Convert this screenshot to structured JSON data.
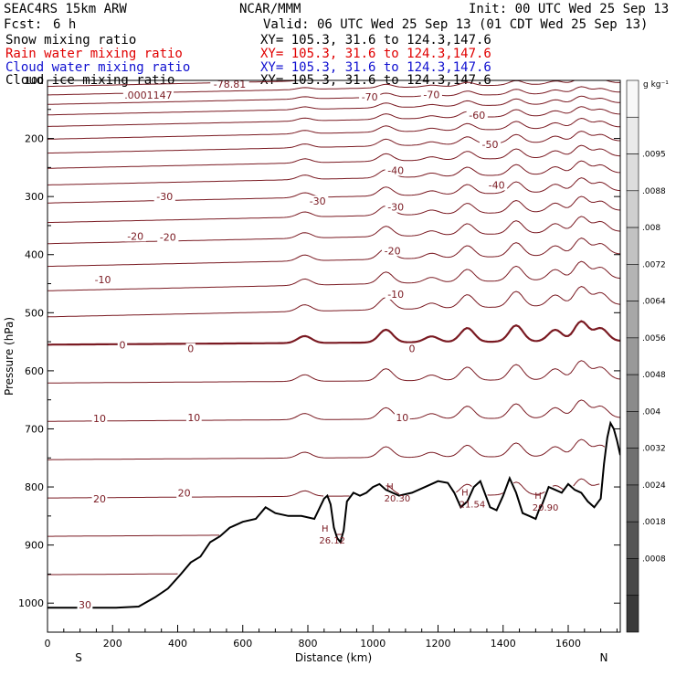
{
  "header": {
    "model": "SEAC4RS 15km ARW",
    "fcst_label": "Fcst:",
    "fcst_value": "6 h",
    "center": "NCAR/MMM",
    "init": "Init: 00 UTC Wed 25 Sep 13",
    "valid": "Valid: 06 UTC Wed 25 Sep 13 (01 CDT Wed 25 Sep 13)"
  },
  "fields": [
    {
      "name": "Snow mixing ratio",
      "xy": "XY= 105.3, 31.6 to 124.3,147.6",
      "color": "#000000"
    },
    {
      "name": "Rain water mixing ratio",
      "xy": "XY= 105.3, 31.6 to 124.3,147.6",
      "color": "#e00000"
    },
    {
      "name": "Cloud water mixing ratio",
      "xy": "XY= 105.3, 31.6 to 124.3,147.6",
      "color": "#1010d0"
    },
    {
      "name": "Cloud ice mixing ratio",
      "xy": "XY= 105.3, 31.6 to 124.3,147.6",
      "color": "#000000"
    }
  ],
  "chart_data": {
    "type": "line",
    "xlabel": "Distance (km)",
    "ylabel": "Pressure (hPa)",
    "xlim": [
      0,
      1760
    ],
    "ylim": [
      1050,
      100
    ],
    "x_ticks": [
      0,
      200,
      400,
      600,
      800,
      1000,
      1200,
      1400,
      1600
    ],
    "y_ticks": [
      200,
      300,
      400,
      500,
      600,
      700,
      800,
      900,
      1000
    ],
    "y_tick_labels": [
      "200",
      "300",
      "400",
      "500",
      "600",
      "700",
      "800",
      "900",
      "1000"
    ],
    "y_top_label": "100",
    "x_end_labels": {
      "left": "S",
      "right": "N"
    },
    "isotherm_color": "#7a1a22",
    "terrain_color": "#000000",
    "isotherm_levels": [
      -80,
      -75,
      -70,
      -65,
      -60,
      -55,
      -50,
      -45,
      -40,
      -35,
      -30,
      -25,
      -20,
      -15,
      -10,
      -5,
      0,
      5,
      10,
      15,
      20,
      25,
      30
    ],
    "zero_isotherm_base": 555,
    "isotherm_labels": [
      {
        "text": "-78.81",
        "x": 560,
        "p": 106
      },
      {
        "text": ".0001147",
        "x": 310,
        "p": 125
      },
      {
        "text": "-70",
        "x": 990,
        "p": 128
      },
      {
        "text": "-70",
        "x": 1180,
        "p": 124
      },
      {
        "text": "-60",
        "x": 1320,
        "p": 160
      },
      {
        "text": "-50",
        "x": 1360,
        "p": 210
      },
      {
        "text": "-40",
        "x": 1070,
        "p": 255
      },
      {
        "text": "-40",
        "x": 1380,
        "p": 280
      },
      {
        "text": "-30",
        "x": 360,
        "p": 300
      },
      {
        "text": "-30",
        "x": 830,
        "p": 308
      },
      {
        "text": "-30",
        "x": 1070,
        "p": 318
      },
      {
        "text": "-20",
        "x": 270,
        "p": 368
      },
      {
        "text": "-20",
        "x": 370,
        "p": 370
      },
      {
        "text": "-20",
        "x": 1060,
        "p": 393
      },
      {
        "text": "-10",
        "x": 170,
        "p": 443
      },
      {
        "text": "-10",
        "x": 1070,
        "p": 468
      },
      {
        "text": "0",
        "x": 230,
        "p": 555
      },
      {
        "text": "0",
        "x": 440,
        "p": 562
      },
      {
        "text": "0",
        "x": 1120,
        "p": 562
      },
      {
        "text": "10",
        "x": 160,
        "p": 682
      },
      {
        "text": "10",
        "x": 450,
        "p": 680
      },
      {
        "text": "10",
        "x": 1090,
        "p": 680
      },
      {
        "text": "20",
        "x": 160,
        "p": 820
      },
      {
        "text": "20",
        "x": 420,
        "p": 810
      },
      {
        "text": "30",
        "x": 115,
        "p": 1003
      }
    ],
    "highs": [
      {
        "label": "H",
        "value": "26.12",
        "x": 875,
        "p": 877
      },
      {
        "label": "H",
        "value": "20.30",
        "x": 1075,
        "p": 805
      },
      {
        "label": "H",
        "value": "21.54",
        "x": 1305,
        "p": 815
      },
      {
        "label": "H",
        "value": "20.90",
        "x": 1530,
        "p": 820
      }
    ],
    "terrain": {
      "x": [
        0,
        150,
        210,
        280,
        330,
        370,
        410,
        440,
        470,
        500,
        530,
        560,
        600,
        640,
        670,
        700,
        740,
        780,
        820,
        850,
        860,
        870,
        880,
        890,
        900,
        910,
        920,
        940,
        960,
        980,
        1000,
        1020,
        1040,
        1080,
        1120,
        1160,
        1200,
        1230,
        1250,
        1270,
        1290,
        1310,
        1330,
        1360,
        1380,
        1400,
        1420,
        1440,
        1460,
        1480,
        1500,
        1510,
        1520,
        1540,
        1560,
        1580,
        1600,
        1620,
        1640,
        1660,
        1680,
        1700,
        1710,
        1720,
        1730,
        1740,
        1750,
        1760
      ],
      "p": [
        1008,
        1008,
        1008,
        1006,
        990,
        975,
        950,
        930,
        920,
        895,
        885,
        870,
        860,
        855,
        835,
        845,
        850,
        850,
        855,
        820,
        815,
        830,
        870,
        888,
        895,
        875,
        825,
        810,
        815,
        810,
        800,
        795,
        805,
        815,
        810,
        800,
        790,
        793,
        810,
        835,
        825,
        800,
        790,
        835,
        840,
        815,
        785,
        810,
        845,
        850,
        855,
        840,
        830,
        800,
        805,
        810,
        795,
        805,
        810,
        825,
        835,
        820,
        760,
        715,
        690,
        700,
        720,
        745
      ]
    },
    "colorbar": {
      "unit": "g kg⁻¹",
      "labels": [
        ".0095",
        ".0088",
        ".008",
        ".0072",
        ".0064",
        ".0056",
        ".0048",
        ".004",
        ".0032",
        ".0024",
        ".0018",
        ".0008"
      ]
    }
  }
}
